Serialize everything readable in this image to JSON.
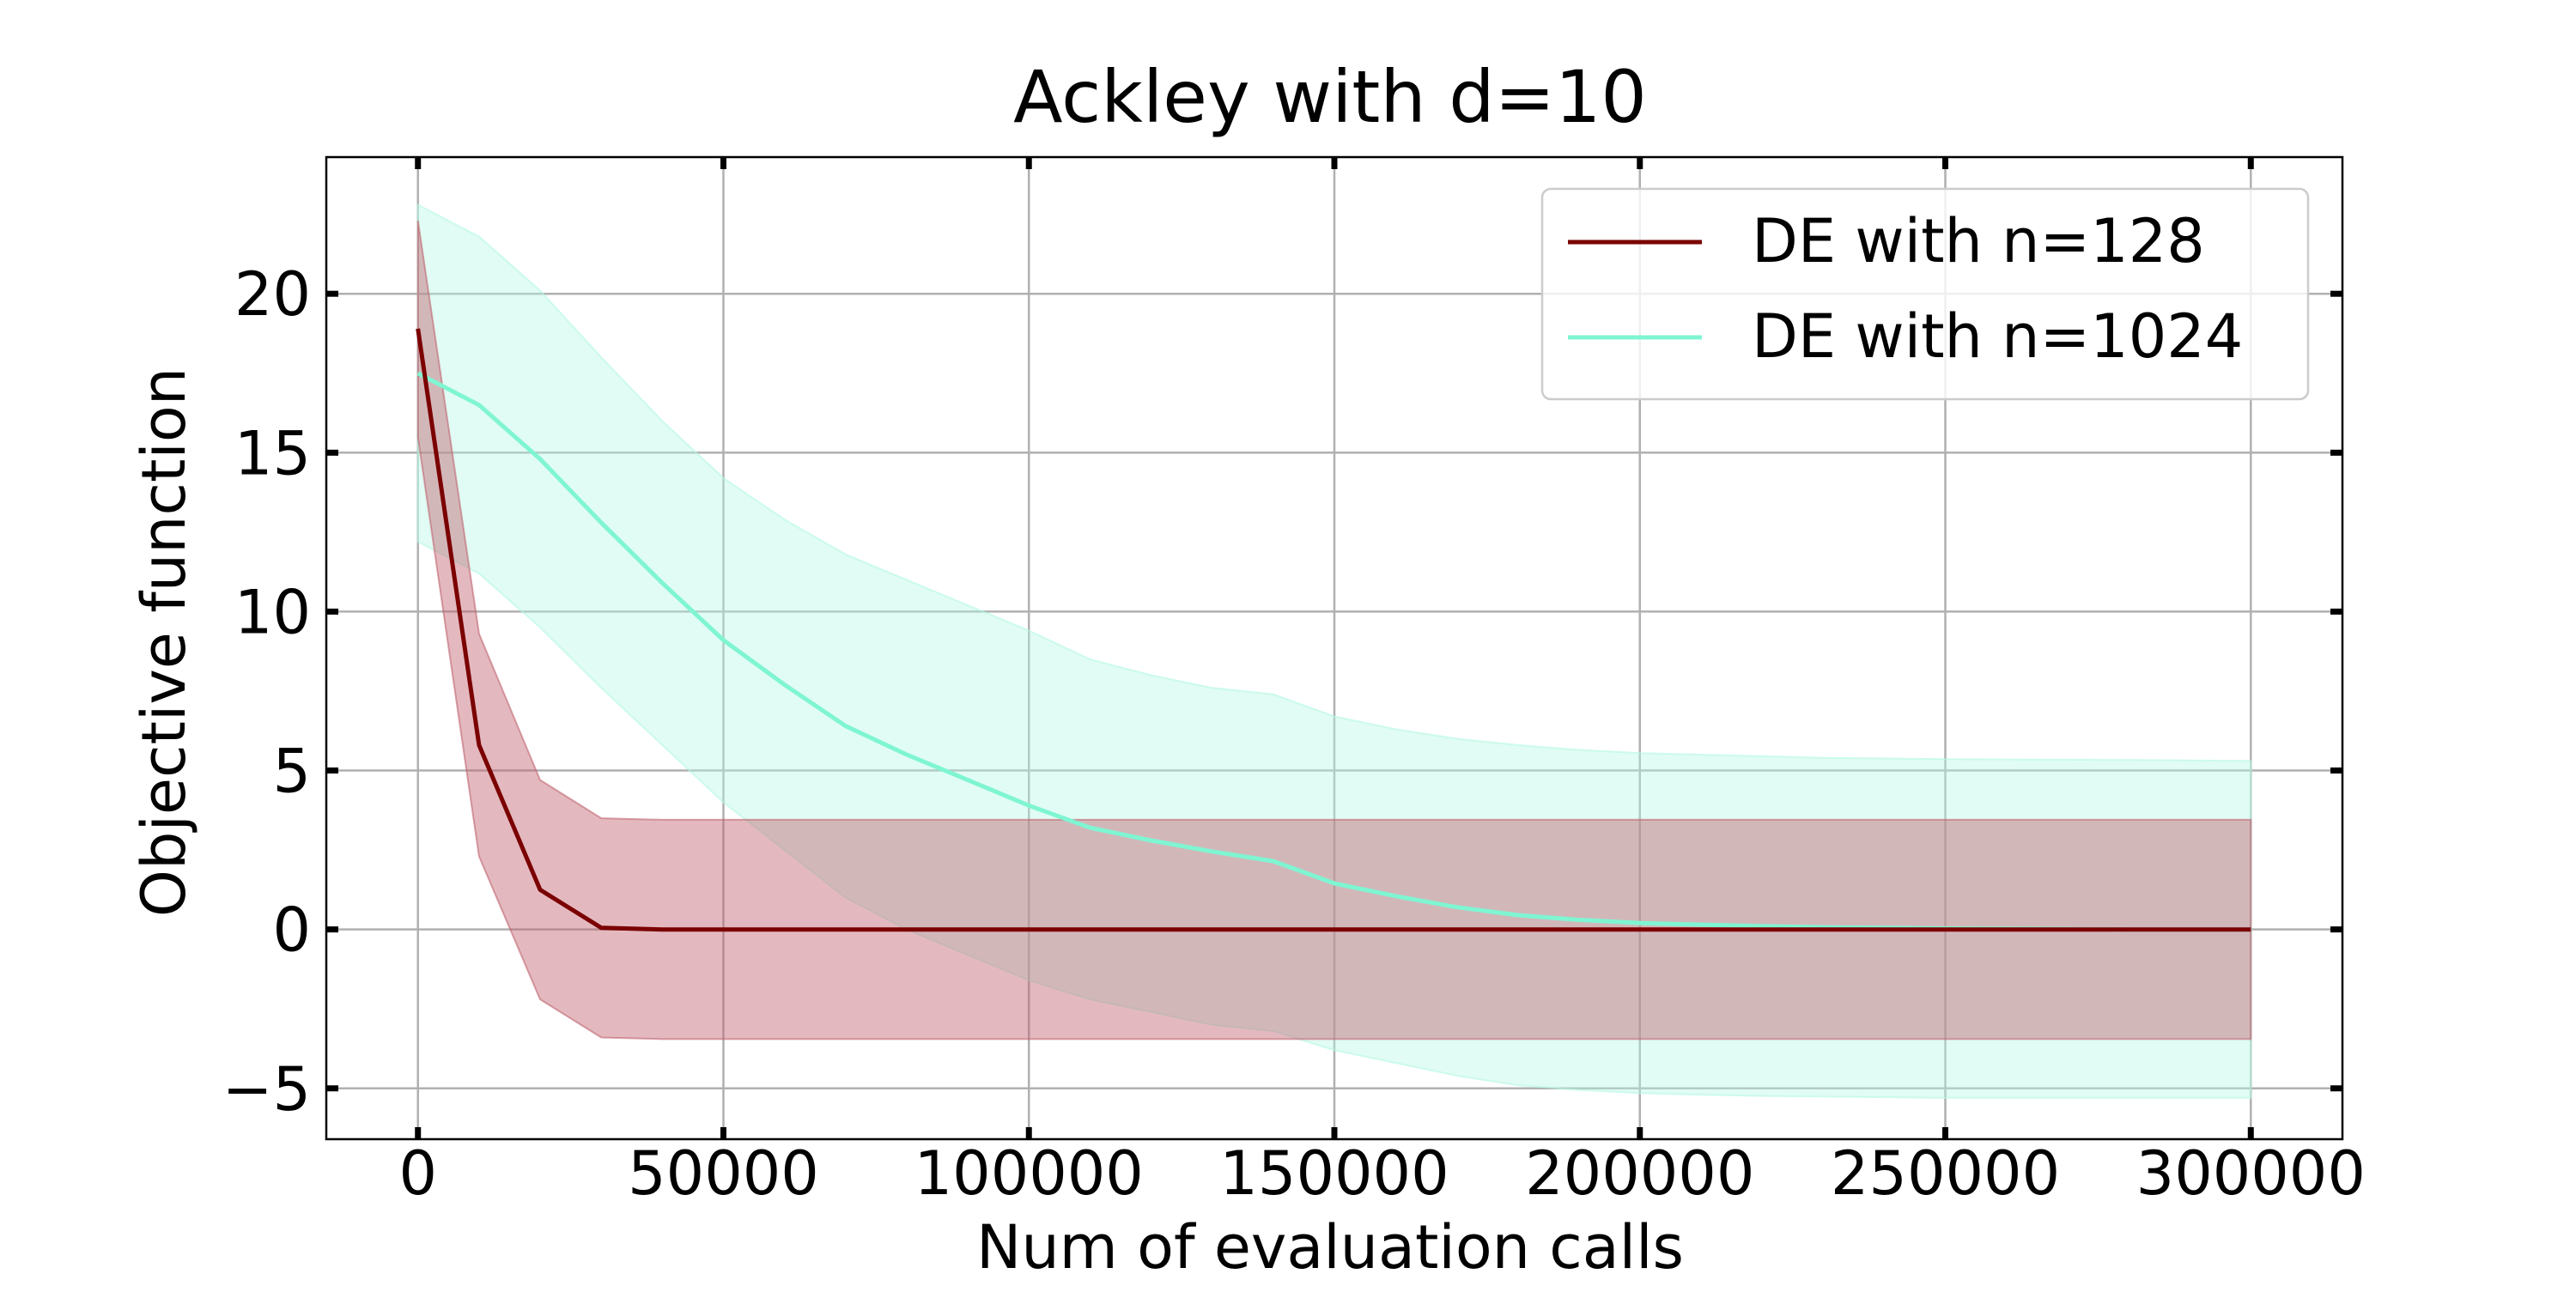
{
  "chart_data": {
    "type": "line",
    "title": "Ackley with d=10",
    "xlabel": "Num of evaluation calls",
    "ylabel": "Objective function",
    "xlim": [
      -15000,
      315000
    ],
    "ylim": [
      -6.6,
      24.3
    ],
    "x_ticks": [
      0,
      50000,
      100000,
      150000,
      200000,
      250000,
      300000
    ],
    "x_tick_labels": [
      "0",
      "50000",
      "100000",
      "150000",
      "200000",
      "250000",
      "300000"
    ],
    "y_ticks": [
      -5,
      0,
      5,
      10,
      15,
      20
    ],
    "y_tick_labels": [
      "−5",
      "0",
      "5",
      "10",
      "15",
      "20"
    ],
    "grid": true,
    "legend": "top-right",
    "series": [
      {
        "name": "DE with n=128",
        "color": "#7b0000",
        "band_color": "#c06470",
        "x": [
          0,
          10000,
          20000,
          30000,
          40000,
          50000,
          100000,
          150000,
          200000,
          250000,
          300000
        ],
        "y": [
          18.9,
          5.8,
          1.25,
          0.05,
          0.0,
          0.0,
          0.0,
          0.0,
          0.0,
          0.0,
          0.0
        ],
        "y_upper": [
          22.3,
          9.3,
          4.7,
          3.5,
          3.45,
          3.45,
          3.45,
          3.45,
          3.45,
          3.45,
          3.45
        ],
        "y_lower": [
          15.5,
          2.3,
          -2.2,
          -3.4,
          -3.45,
          -3.45,
          -3.45,
          -3.45,
          -3.45,
          -3.45,
          -3.45
        ]
      },
      {
        "name": "DE with n=1024",
        "color": "#7ff5d2",
        "band_color": "#b4f8e4",
        "x": [
          0,
          10000,
          20000,
          30000,
          40000,
          50000,
          60000,
          70000,
          80000,
          90000,
          100000,
          110000,
          120000,
          130000,
          140000,
          150000,
          160000,
          170000,
          180000,
          190000,
          200000,
          210000,
          220000,
          230000,
          240000,
          250000,
          260000,
          270000,
          280000,
          290000,
          300000
        ],
        "y": [
          17.5,
          16.5,
          14.8,
          12.8,
          10.9,
          9.1,
          7.7,
          6.4,
          5.5,
          4.7,
          3.9,
          3.2,
          2.8,
          2.45,
          2.15,
          1.45,
          1.05,
          0.7,
          0.45,
          0.3,
          0.2,
          0.15,
          0.1,
          0.07,
          0.05,
          0.03,
          0.02,
          0.01,
          0.0,
          0.0,
          0.0
        ],
        "y_upper": [
          22.8,
          21.8,
          20.1,
          18.0,
          16.0,
          14.2,
          12.9,
          11.8,
          11.0,
          10.2,
          9.4,
          8.5,
          8.0,
          7.6,
          7.4,
          6.7,
          6.3,
          6.0,
          5.8,
          5.65,
          5.55,
          5.5,
          5.45,
          5.4,
          5.38,
          5.36,
          5.35,
          5.34,
          5.33,
          5.32,
          5.3
        ],
        "y_lower": [
          12.2,
          11.2,
          9.5,
          7.6,
          5.8,
          4.0,
          2.5,
          1.0,
          0.0,
          -0.8,
          -1.6,
          -2.2,
          -2.6,
          -3.0,
          -3.2,
          -3.8,
          -4.2,
          -4.6,
          -4.9,
          -5.05,
          -5.15,
          -5.2,
          -5.24,
          -5.26,
          -5.28,
          -5.3,
          -5.3,
          -5.3,
          -5.3,
          -5.3,
          -5.3
        ]
      }
    ]
  }
}
